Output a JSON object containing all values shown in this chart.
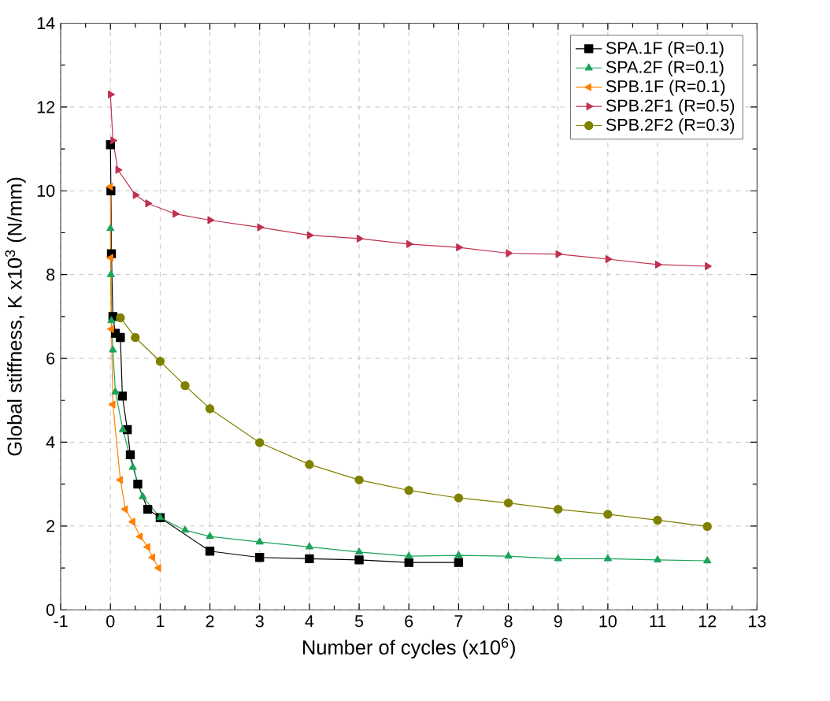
{
  "chart_data": {
    "type": "line",
    "xlabel": "Number of cycles (x10$^{6}$)",
    "ylabel": "Global stiffness, K x10$^{3}$ (N/mm)",
    "xlim": [
      -1,
      13
    ],
    "ylim": [
      0,
      14
    ],
    "xticks": [
      -1,
      0,
      1,
      2,
      3,
      4,
      5,
      6,
      7,
      8,
      9,
      10,
      11,
      12,
      13
    ],
    "yticks": [
      0,
      2,
      4,
      6,
      8,
      10,
      12,
      14
    ],
    "grid": true,
    "legend": "top right",
    "line_style": "solid",
    "series": [
      {
        "name": "SPA.1F   (R=0.1)",
        "color": "#000000",
        "marker": "square",
        "x": [
          0,
          0.01,
          0.02,
          0.05,
          0.1,
          0.2,
          0.24,
          0.34,
          0.4,
          0.55,
          0.75,
          1.0,
          2,
          3,
          4,
          5,
          6,
          7
        ],
        "values": [
          11.1,
          10.0,
          8.5,
          7.0,
          6.6,
          6.5,
          5.1,
          4.3,
          3.7,
          3.0,
          2.4,
          2.2,
          1.4,
          1.25,
          1.22,
          1.19,
          1.13,
          1.13
        ]
      },
      {
        "name": "SPA.2F   (R=0.1)",
        "color": "#1ba35a",
        "marker": "triangle",
        "x": [
          0,
          0.01,
          0.02,
          0.05,
          0.1,
          0.25,
          0.45,
          0.65,
          1.0,
          1.5,
          2,
          3,
          4,
          5,
          6,
          7,
          8,
          9,
          10,
          11,
          12
        ],
        "values": [
          9.1,
          8.0,
          6.9,
          6.2,
          5.2,
          4.3,
          3.4,
          2.7,
          2.2,
          1.9,
          1.75,
          1.62,
          1.5,
          1.38,
          1.28,
          1.3,
          1.28,
          1.22,
          1.22,
          1.19,
          1.17
        ]
      },
      {
        "name": "SPB.1F   (R=0.1)",
        "color": "#ff8000",
        "marker": "triangle-left",
        "x": [
          0,
          0.01,
          0.02,
          0.05,
          0.2,
          0.3,
          0.45,
          0.6,
          0.75,
          0.85,
          0.97
        ],
        "values": [
          10.1,
          8.4,
          6.7,
          4.9,
          3.1,
          2.4,
          2.1,
          1.75,
          1.5,
          1.25,
          1.0
        ]
      },
      {
        "name": "SPB.2F1 (R=0.5)",
        "color": "#c0304f",
        "marker": "triangle-right",
        "x": [
          0,
          0.05,
          0.15,
          0.5,
          0.75,
          1.3,
          2,
          3,
          4,
          5,
          6,
          7,
          8,
          9,
          10,
          11,
          12
        ],
        "values": [
          12.3,
          11.2,
          10.5,
          9.9,
          9.7,
          9.45,
          9.3,
          9.13,
          8.94,
          8.86,
          8.73,
          8.65,
          8.51,
          8.49,
          8.37,
          8.24,
          8.2
        ]
      },
      {
        "name": "SPB.2F2 (R=0.3)",
        "color": "#808000",
        "marker": "circle",
        "x": [
          0.2,
          0.5,
          1.0,
          1.5,
          2,
          3,
          4,
          5,
          6,
          7,
          8,
          9,
          10,
          11,
          12
        ],
        "values": [
          6.97,
          6.5,
          5.93,
          5.35,
          4.8,
          3.99,
          3.47,
          3.1,
          2.85,
          2.67,
          2.55,
          2.4,
          2.28,
          2.14,
          1.99
        ]
      }
    ]
  }
}
